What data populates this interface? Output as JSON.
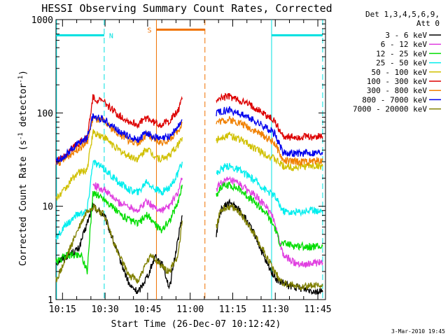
{
  "chart_data": {
    "type": "line",
    "title": "HESSI Observing Summary Count Rates, Corrected",
    "xlabel": "Start Time (26-Dec-07 10:12:42)",
    "ylabel_main": "Corrected Count Rate (s",
    "ylabel_sup1": "-1",
    "ylabel_mid": " detector",
    "ylabel_sup2": "-1",
    "ylabel_end": ")",
    "y_scale": "log",
    "ylim": [
      1,
      1000
    ],
    "xlim_minutes_after_start": [
      0,
      95
    ],
    "x_tick_labels": [
      {
        "label": "10:15",
        "minute": 2.3
      },
      {
        "label": "10:30",
        "minute": 17.3
      },
      {
        "label": "10:45",
        "minute": 32.3
      },
      {
        "label": "11:00",
        "minute": 47.3
      },
      {
        "label": "11:15",
        "minute": 62.3
      },
      {
        "label": "11:30",
        "minute": 77.3
      },
      {
        "label": "11:45",
        "minute": 92.3
      }
    ],
    "y_tick_labels": [
      {
        "label": "1",
        "value": 1
      },
      {
        "label": "10",
        "value": 10
      },
      {
        "label": "100",
        "value": 100
      },
      {
        "label": "1000",
        "value": 1000
      }
    ],
    "legend_header": [
      "Det 1,3,4,5,6,9,",
      "Att 0"
    ],
    "legend_placement": "right",
    "flags": [
      {
        "label": "N",
        "color": "#00e0e0",
        "segments": [
          [
            0,
            17.0
          ],
          [
            76.0,
            94.0
          ]
        ],
        "level": 680
      },
      {
        "label": "S",
        "color": "#f07000",
        "segments": [
          [
            35.4,
            52.5
          ]
        ],
        "level": 780
      }
    ],
    "vertical_markers": [
      {
        "minute": 0.2,
        "color": "#00e0e0",
        "style": "solid"
      },
      {
        "minute": 17.0,
        "color": "#00e0e0",
        "style": "dashed"
      },
      {
        "minute": 76.0,
        "color": "#00e0e0",
        "style": "solid"
      },
      {
        "minute": 94.0,
        "color": "#00e0e0",
        "style": "dashed"
      },
      {
        "minute": 35.4,
        "color": "#f07000",
        "style": "solid"
      },
      {
        "minute": 52.5,
        "color": "#f07000",
        "style": "dashed"
      }
    ],
    "data_gap_minutes": [
      44.5,
      56.5
    ],
    "series": [
      {
        "name": "3 - 6 keV",
        "color": "#000000",
        "points": [
          [
            0,
            2.5
          ],
          [
            8,
            3.5
          ],
          [
            13,
            10
          ],
          [
            17,
            8
          ],
          [
            22,
            3
          ],
          [
            26,
            1.4
          ],
          [
            29,
            1.2
          ],
          [
            33,
            2
          ],
          [
            35,
            3
          ],
          [
            38,
            2.2
          ],
          [
            40,
            1.3
          ],
          [
            42,
            3
          ],
          [
            44.5,
            8
          ],
          [
            56.5,
            5
          ],
          [
            58,
            9
          ],
          [
            61,
            11
          ],
          [
            65,
            9
          ],
          [
            70,
            5
          ],
          [
            74,
            2.5
          ],
          [
            78,
            1.6
          ],
          [
            82,
            1.4
          ],
          [
            88,
            1.3
          ],
          [
            94,
            1.2
          ]
        ]
      },
      {
        "name": "6 - 12 keV",
        "color": "#e040e0",
        "points": [
          [
            13,
            17
          ],
          [
            17,
            15
          ],
          [
            22,
            11
          ],
          [
            26,
            10
          ],
          [
            29,
            9
          ],
          [
            32,
            11.5
          ],
          [
            34,
            10
          ],
          [
            37,
            9
          ],
          [
            40,
            10
          ],
          [
            43,
            14
          ],
          [
            44.5,
            20
          ],
          [
            56.5,
            15
          ],
          [
            58,
            18
          ],
          [
            61,
            19
          ],
          [
            65,
            17
          ],
          [
            70,
            13
          ],
          [
            74,
            10
          ],
          [
            77,
            7
          ],
          [
            80,
            3
          ],
          [
            84,
            2.5
          ],
          [
            88,
            2.4
          ],
          [
            94,
            2.5
          ]
        ]
      },
      {
        "name": "12 - 25 keV",
        "color": "#00dd00",
        "points": [
          [
            0,
            2.5
          ],
          [
            4,
            3
          ],
          [
            9,
            3
          ],
          [
            11,
            2
          ],
          [
            13,
            14
          ],
          [
            17,
            12
          ],
          [
            22,
            8.5
          ],
          [
            26,
            7
          ],
          [
            29,
            6.5
          ],
          [
            32,
            8
          ],
          [
            34,
            7
          ],
          [
            37,
            5.5
          ],
          [
            40,
            7
          ],
          [
            43,
            11
          ],
          [
            44.5,
            17
          ],
          [
            56.5,
            13
          ],
          [
            58,
            16
          ],
          [
            61,
            17
          ],
          [
            65,
            15
          ],
          [
            70,
            11
          ],
          [
            74,
            8.5
          ],
          [
            77,
            6
          ],
          [
            79,
            4
          ],
          [
            84,
            3.8
          ],
          [
            88,
            3.7
          ],
          [
            94,
            3.7
          ]
        ]
      },
      {
        "name": "25 - 50 keV",
        "color": "#00eeee",
        "points": [
          [
            0,
            4.5
          ],
          [
            3,
            6
          ],
          [
            7,
            8
          ],
          [
            11,
            9
          ],
          [
            13,
            30
          ],
          [
            17,
            25
          ],
          [
            22,
            18
          ],
          [
            26,
            15
          ],
          [
            29,
            14
          ],
          [
            32,
            19
          ],
          [
            34,
            16
          ],
          [
            37,
            14
          ],
          [
            40,
            16
          ],
          [
            43,
            22
          ],
          [
            44.5,
            30
          ],
          [
            56.5,
            22
          ],
          [
            58,
            25
          ],
          [
            61,
            27
          ],
          [
            65,
            24
          ],
          [
            70,
            19
          ],
          [
            74,
            15
          ],
          [
            77,
            13
          ],
          [
            80,
            9
          ],
          [
            84,
            8.5
          ],
          [
            88,
            9
          ],
          [
            94,
            9
          ]
        ]
      },
      {
        "name": "50 - 100 keV",
        "color": "#d0c000",
        "points": [
          [
            0,
            12
          ],
          [
            3,
            15
          ],
          [
            7,
            22
          ],
          [
            11,
            25
          ],
          [
            13,
            62
          ],
          [
            17,
            55
          ],
          [
            22,
            40
          ],
          [
            26,
            34
          ],
          [
            29,
            32
          ],
          [
            32,
            42
          ],
          [
            34,
            36
          ],
          [
            37,
            32
          ],
          [
            40,
            35
          ],
          [
            43,
            45
          ],
          [
            44.5,
            55
          ],
          [
            56.5,
            50
          ],
          [
            58,
            55
          ],
          [
            61,
            58
          ],
          [
            65,
            52
          ],
          [
            70,
            42
          ],
          [
            74,
            36
          ],
          [
            77,
            32
          ],
          [
            80,
            27
          ],
          [
            84,
            26
          ],
          [
            88,
            27
          ],
          [
            94,
            27
          ]
        ]
      },
      {
        "name": "100 - 300 keV",
        "color": "#dd0000",
        "points": [
          [
            0,
            30
          ],
          [
            3,
            35
          ],
          [
            7,
            45
          ],
          [
            11,
            55
          ],
          [
            13,
            145
          ],
          [
            17,
            130
          ],
          [
            22,
            95
          ],
          [
            26,
            80
          ],
          [
            29,
            75
          ],
          [
            32,
            90
          ],
          [
            34,
            80
          ],
          [
            37,
            75
          ],
          [
            40,
            82
          ],
          [
            43,
            105
          ],
          [
            44.5,
            140
          ],
          [
            56.5,
            140
          ],
          [
            58,
            145
          ],
          [
            61,
            150
          ],
          [
            65,
            135
          ],
          [
            70,
            115
          ],
          [
            74,
            95
          ],
          [
            77,
            82
          ],
          [
            80,
            56
          ],
          [
            84,
            55
          ],
          [
            88,
            55
          ],
          [
            94,
            56
          ]
        ]
      },
      {
        "name": "300 - 800 keV",
        "color": "#f08000",
        "points": [
          [
            0,
            28
          ],
          [
            3,
            32
          ],
          [
            7,
            40
          ],
          [
            11,
            48
          ],
          [
            13,
            88
          ],
          [
            17,
            80
          ],
          [
            22,
            60
          ],
          [
            26,
            50
          ],
          [
            29,
            48
          ],
          [
            32,
            58
          ],
          [
            34,
            52
          ],
          [
            37,
            48
          ],
          [
            40,
            52
          ],
          [
            43,
            65
          ],
          [
            44.5,
            78
          ],
          [
            56.5,
            80
          ],
          [
            58,
            82
          ],
          [
            61,
            85
          ],
          [
            65,
            78
          ],
          [
            70,
            65
          ],
          [
            74,
            55
          ],
          [
            77,
            48
          ],
          [
            80,
            31
          ],
          [
            84,
            30
          ],
          [
            88,
            30
          ],
          [
            94,
            31
          ]
        ]
      },
      {
        "name": "800 - 7000 keV",
        "color": "#0000ee",
        "points": [
          [
            0,
            30
          ],
          [
            3,
            35
          ],
          [
            7,
            45
          ],
          [
            11,
            55
          ],
          [
            13,
            92
          ],
          [
            17,
            85
          ],
          [
            22,
            65
          ],
          [
            26,
            55
          ],
          [
            29,
            52
          ],
          [
            32,
            62
          ],
          [
            34,
            56
          ],
          [
            37,
            52
          ],
          [
            40,
            56
          ],
          [
            43,
            70
          ],
          [
            44.5,
            85
          ],
          [
            56.5,
            100
          ],
          [
            58,
            105
          ],
          [
            61,
            108
          ],
          [
            65,
            98
          ],
          [
            70,
            82
          ],
          [
            74,
            70
          ],
          [
            77,
            60
          ],
          [
            80,
            38
          ],
          [
            84,
            37
          ],
          [
            88,
            37
          ],
          [
            94,
            38
          ]
        ]
      },
      {
        "name": "7000 - 20000 keV",
        "color": "#808000",
        "points": [
          [
            0,
            1.6
          ],
          [
            3,
            2.5
          ],
          [
            7,
            5
          ],
          [
            11,
            9
          ],
          [
            13,
            10
          ],
          [
            17,
            8
          ],
          [
            22,
            3
          ],
          [
            26,
            1.8
          ],
          [
            29,
            1.6
          ],
          [
            32,
            2.5
          ],
          [
            34,
            3
          ],
          [
            37,
            2.3
          ],
          [
            40,
            2
          ],
          [
            43,
            3
          ],
          [
            44.5,
            7
          ],
          [
            56.5,
            6
          ],
          [
            58,
            9
          ],
          [
            61,
            10
          ],
          [
            65,
            8.5
          ],
          [
            70,
            5
          ],
          [
            74,
            3
          ],
          [
            77,
            2
          ],
          [
            80,
            1.5
          ],
          [
            84,
            1.4
          ],
          [
            88,
            1.4
          ],
          [
            94,
            1.4
          ]
        ]
      }
    ]
  },
  "footer": {
    "date_stamp": "3-Mar-2010 19:45"
  }
}
